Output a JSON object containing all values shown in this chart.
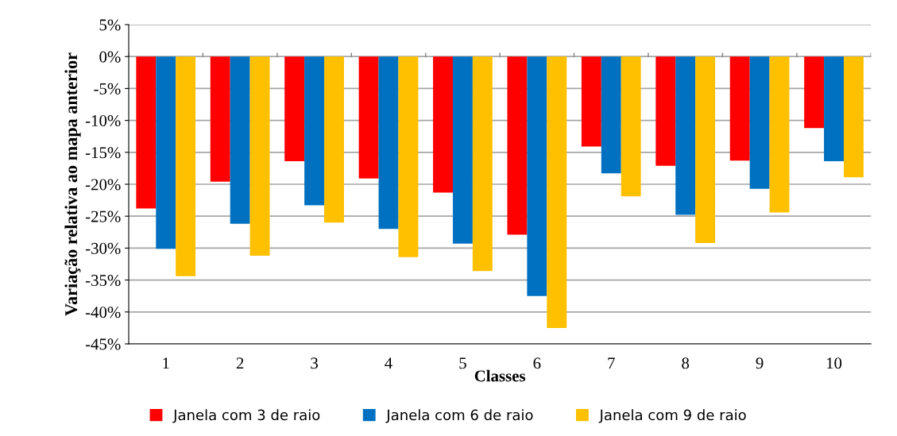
{
  "chart_data": {
    "type": "bar",
    "xlabel": "Classes",
    "ylabel": "Variação relativa ao mapa anterior",
    "categories": [
      "1",
      "2",
      "3",
      "4",
      "5",
      "6",
      "7",
      "8",
      "9",
      "10"
    ],
    "series": [
      {
        "name": "Janela com 3 de raio",
        "color": "#ff0000",
        "values": [
          -23.8,
          -19.6,
          -16.4,
          -19.1,
          -21.3,
          -27.9,
          -14.1,
          -17.1,
          -16.3,
          -11.2
        ]
      },
      {
        "name": "Janela com 6 de raio",
        "color": "#0070c0",
        "values": [
          -30.1,
          -26.2,
          -23.3,
          -27.0,
          -29.3,
          -37.5,
          -18.3,
          -24.8,
          -20.7,
          -16.4
        ]
      },
      {
        "name": "Janela com 9 de raio",
        "color": "#ffc000",
        "values": [
          -34.4,
          -31.2,
          -26.0,
          -31.4,
          -33.6,
          -42.5,
          -21.9,
          -29.2,
          -24.4,
          -18.9
        ]
      }
    ],
    "ylim": [
      -45,
      5
    ],
    "yticks": [
      {
        "value": 5,
        "label": "5%"
      },
      {
        "value": 0,
        "label": "0%"
      },
      {
        "value": -5,
        "label": "-5%"
      },
      {
        "value": -10,
        "label": "-10%"
      },
      {
        "value": -15,
        "label": "-15%"
      },
      {
        "value": -20,
        "label": "-20%"
      },
      {
        "value": -25,
        "label": "-25%"
      },
      {
        "value": -30,
        "label": "-30%"
      },
      {
        "value": -35,
        "label": "-35%"
      },
      {
        "value": -40,
        "label": "-40%"
      },
      {
        "value": -45,
        "label": "-45%"
      }
    ],
    "grid": "y",
    "legend": "bottom"
  }
}
